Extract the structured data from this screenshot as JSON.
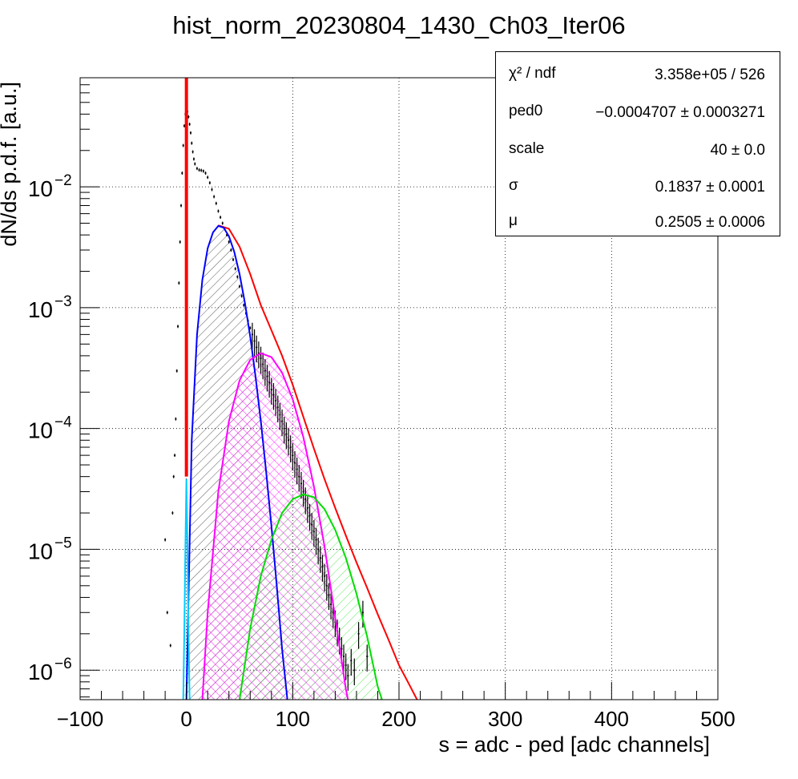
{
  "title": "hist_norm_20230804_1430_Ch03_Iter06",
  "stats_box": {
    "rows": [
      {
        "name": "χ² / ndf",
        "value": "3.358e+05 / 526"
      },
      {
        "name": "ped0",
        "value": "−0.0004707  ± 0.0003271"
      },
      {
        "name": "scale",
        "value": "40 ± 0.0"
      },
      {
        "name": "σ",
        "value": "0.1837  ± 0.0001"
      },
      {
        "name": "μ",
        "value": "0.2505  ± 0.0006"
      }
    ]
  },
  "chart_data": {
    "type": "scatter",
    "xlabel": "s = adc - ped [adc channels]",
    "ylabel": "dN/ds p.d.f. [a.u.]",
    "xlim": [
      -100,
      500
    ],
    "ylim": [
      5.7e-07,
      0.08
    ],
    "yscale": "log",
    "grid": true,
    "x_ticks": [
      -100,
      0,
      100,
      200,
      300,
      400,
      500
    ],
    "y_ticks": [
      {
        "value": 1e-06,
        "base": "10",
        "exp": "−6"
      },
      {
        "value": 1e-05,
        "base": "10",
        "exp": "−5"
      },
      {
        "value": 0.0001,
        "base": "10",
        "exp": "−4"
      },
      {
        "value": 0.001,
        "base": "10",
        "exp": "−3"
      },
      {
        "value": 0.01,
        "base": "10",
        "exp": "−2"
      }
    ],
    "pedestal_spike": {
      "x": 0,
      "y_top": 0.08,
      "color": "#ff0000"
    },
    "data_points": [
      [
        -20,
        1.2e-05
      ],
      [
        -18,
        3e-06
      ],
      [
        -15,
        1.6e-06
      ],
      [
        -13,
        2e-05
      ],
      [
        -12,
        4e-05
      ],
      [
        -11,
        6e-05
      ],
      [
        -10,
        0.00012
      ],
      [
        -9,
        0.0003
      ],
      [
        -8,
        0.0007
      ],
      [
        -7,
        0.0016
      ],
      [
        -6,
        0.0035
      ],
      [
        -5,
        0.007
      ],
      [
        -4,
        0.013
      ],
      [
        -3,
        0.022
      ],
      [
        -2,
        0.032
      ],
      [
        -1,
        0.04
      ],
      [
        0,
        0.043
      ],
      [
        1,
        0.042
      ],
      [
        2,
        0.038
      ],
      [
        3,
        0.033
      ],
      [
        4,
        0.028
      ],
      [
        5,
        0.023
      ],
      [
        6,
        0.0195
      ],
      [
        7,
        0.017
      ],
      [
        8,
        0.0155
      ],
      [
        10,
        0.0142
      ],
      [
        12,
        0.0138
      ],
      [
        14,
        0.0137
      ],
      [
        16,
        0.0135
      ],
      [
        18,
        0.013
      ],
      [
        20,
        0.012
      ],
      [
        22,
        0.0108
      ],
      [
        24,
        0.0095
      ],
      [
        26,
        0.0083
      ],
      [
        28,
        0.0073
      ],
      [
        30,
        0.0063
      ],
      [
        32,
        0.0056
      ],
      [
        34,
        0.005
      ],
      [
        36,
        0.0045
      ],
      [
        38,
        0.004
      ],
      [
        40,
        0.0035
      ],
      [
        42,
        0.003
      ],
      [
        44,
        0.0025
      ],
      [
        46,
        0.0021
      ],
      [
        48,
        0.0018
      ],
      [
        50,
        0.0015
      ],
      [
        52,
        0.00125
      ],
      [
        54,
        0.00105
      ],
      [
        56,
        0.0009
      ],
      [
        58,
        0.00078
      ],
      [
        60,
        0.00068
      ],
      [
        62,
        0.0006
      ],
      [
        64,
        0.00053
      ],
      [
        66,
        0.00047
      ],
      [
        68,
        0.00042
      ],
      [
        70,
        0.00038
      ],
      [
        72,
        0.00034
      ],
      [
        74,
        0.0003
      ],
      [
        76,
        0.00027
      ],
      [
        78,
        0.00024
      ],
      [
        80,
        0.00021
      ],
      [
        82,
        0.00019
      ],
      [
        84,
        0.00017
      ],
      [
        86,
        0.00015
      ],
      [
        88,
        0.00013
      ],
      [
        90,
        0.000115
      ],
      [
        92,
        0.0001
      ],
      [
        94,
        9e-05
      ],
      [
        96,
        8e-05
      ],
      [
        98,
        7e-05
      ],
      [
        100,
        6e-05
      ],
      [
        102,
        5.2e-05
      ],
      [
        104,
        4.6e-05
      ],
      [
        106,
        4e-05
      ],
      [
        108,
        3.5e-05
      ],
      [
        110,
        3e-05
      ],
      [
        112,
        2.6e-05
      ],
      [
        114,
        2.2e-05
      ],
      [
        116,
        1.9e-05
      ],
      [
        118,
        1.6e-05
      ],
      [
        120,
        1.4e-05
      ],
      [
        122,
        1.2e-05
      ],
      [
        124,
        1e-05
      ],
      [
        126,
        8.5e-06
      ],
      [
        128,
        7.2e-06
      ],
      [
        130,
        6e-06
      ],
      [
        132,
        5e-06
      ],
      [
        134,
        4.2e-06
      ],
      [
        136,
        3.5e-06
      ],
      [
        138,
        3e-06
      ],
      [
        140,
        2.5e-06
      ],
      [
        142,
        2.1e-06
      ],
      [
        144,
        1.8e-06
      ],
      [
        146,
        1.5e-06
      ],
      [
        148,
        1.3e-06
      ],
      [
        150,
        1.1e-06
      ],
      [
        152,
        9e-07
      ],
      [
        155,
        1.2e-06
      ],
      [
        158,
        1e-06
      ],
      [
        162,
        2e-06
      ],
      [
        166,
        3e-06
      ],
      [
        170,
        1.3e-06
      ]
    ],
    "series": [
      {
        "color": "#ff0000",
        "fill": "none",
        "hatch": false,
        "points": [
          [
            30,
            0.0048
          ],
          [
            40,
            0.0045
          ],
          [
            50,
            0.0032
          ],
          [
            60,
            0.0019
          ],
          [
            70,
            0.00105
          ],
          [
            80,
            0.00065
          ],
          [
            90,
            0.0004
          ],
          [
            100,
            0.00023
          ],
          [
            110,
            0.000125
          ],
          [
            120,
            6.8e-05
          ],
          [
            130,
            3.8e-05
          ],
          [
            140,
            2.2e-05
          ],
          [
            150,
            1.3e-05
          ],
          [
            160,
            7.8e-06
          ],
          [
            170,
            4.8e-06
          ],
          [
            180,
            2.9e-06
          ],
          [
            190,
            1.8e-06
          ],
          [
            200,
            1.1e-06
          ],
          [
            210,
            7.5e-07
          ],
          [
            217,
            5.7e-07
          ]
        ]
      },
      {
        "color": "#0000ff",
        "fill": "#000000",
        "hatch": true,
        "points": [
          [
            0,
            5.7e-07
          ],
          [
            5,
            8e-05
          ],
          [
            10,
            0.0006
          ],
          [
            15,
            0.0017
          ],
          [
            20,
            0.0031
          ],
          [
            25,
            0.0042
          ],
          [
            30,
            0.00475
          ],
          [
            35,
            0.0046
          ],
          [
            40,
            0.0039
          ],
          [
            45,
            0.0029
          ],
          [
            50,
            0.0019
          ],
          [
            55,
            0.0011
          ],
          [
            60,
            0.00058
          ],
          [
            65,
            0.00027
          ],
          [
            70,
            0.000115
          ],
          [
            75,
            4.4e-05
          ],
          [
            80,
            1.55e-05
          ],
          [
            85,
            5e-06
          ],
          [
            90,
            1.5e-06
          ],
          [
            95,
            5.7e-07
          ]
        ]
      },
      {
        "color": "#ff00ff",
        "fill": "#ff00ff",
        "hatch": true,
        "points": [
          [
            15,
            5.7e-07
          ],
          [
            20,
            3e-06
          ],
          [
            30,
            3e-05
          ],
          [
            40,
            0.000115
          ],
          [
            50,
            0.00025
          ],
          [
            60,
            0.00037
          ],
          [
            70,
            0.00042
          ],
          [
            80,
            0.00039
          ],
          [
            90,
            0.00029
          ],
          [
            100,
            0.000175
          ],
          [
            110,
            8.5e-05
          ],
          [
            120,
            3.3e-05
          ],
          [
            130,
            1.05e-05
          ],
          [
            140,
            2.7e-06
          ],
          [
            150,
            7e-07
          ],
          [
            152,
            5.7e-07
          ]
        ]
      },
      {
        "color": "#00dd00",
        "fill": "#00dd00",
        "hatch": true,
        "points": [
          [
            50,
            5.7e-07
          ],
          [
            60,
            2.2e-06
          ],
          [
            70,
            6e-06
          ],
          [
            80,
            1.2e-05
          ],
          [
            90,
            2e-05
          ],
          [
            100,
            2.6e-05
          ],
          [
            110,
            2.85e-05
          ],
          [
            120,
            2.7e-05
          ],
          [
            130,
            2.15e-05
          ],
          [
            140,
            1.45e-05
          ],
          [
            150,
            8.5e-06
          ],
          [
            160,
            4.3e-06
          ],
          [
            170,
            1.9e-06
          ],
          [
            180,
            7.3e-07
          ],
          [
            184,
            5.7e-07
          ]
        ]
      },
      {
        "color": "#00ccff",
        "fill": "#00ccff",
        "hatch": true,
        "points": [
          [
            -3,
            5.7e-07
          ],
          [
            -2,
            2e-06
          ],
          [
            -1,
            1e-05
          ],
          [
            0,
            3.8e-05
          ],
          [
            1,
            1e-05
          ],
          [
            2,
            2e-06
          ],
          [
            3,
            5.7e-07
          ]
        ]
      }
    ]
  }
}
